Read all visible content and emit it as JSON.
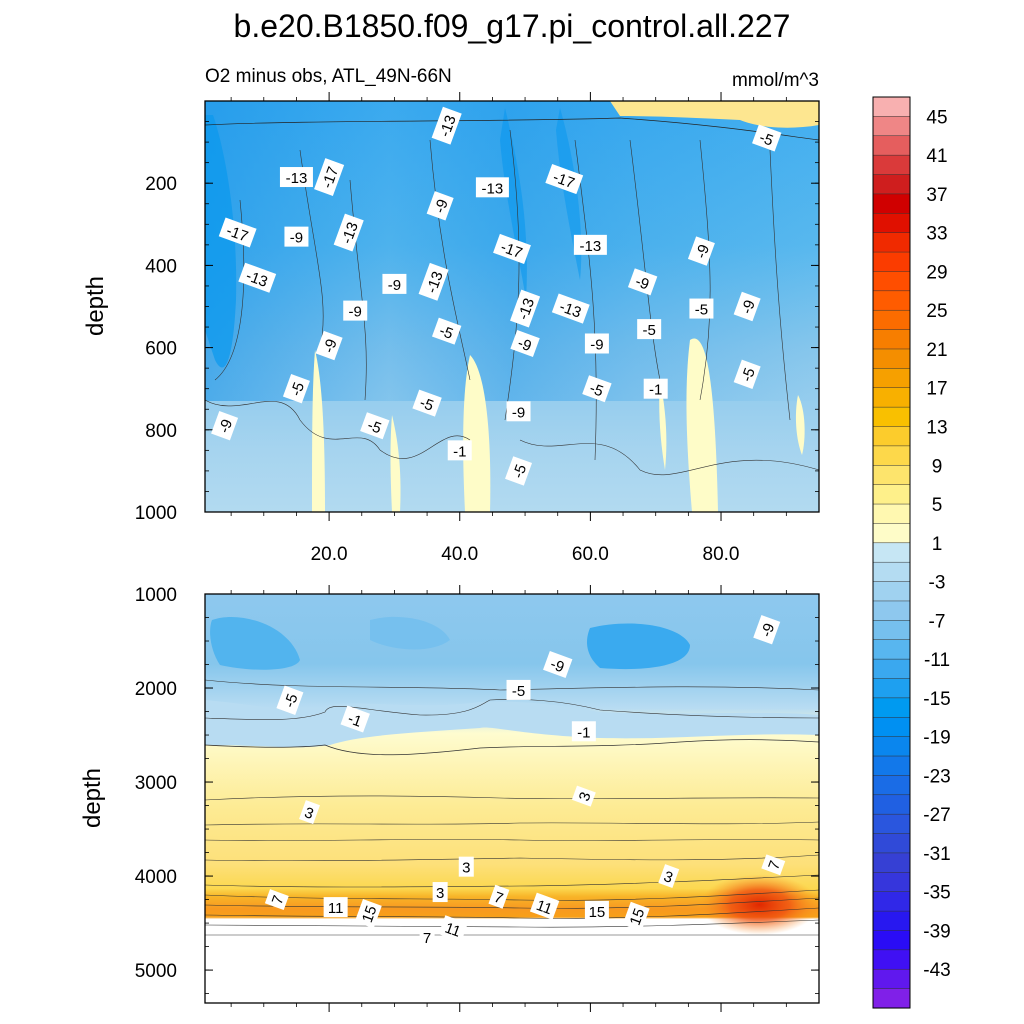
{
  "chart_data": {
    "type": "heatmap",
    "title": "b.e20.B1850.f09_g17.pi_control.all.227",
    "subtitle": "O2 minus obs, ATL_49N-66N",
    "units": "mmol/m^3",
    "xlim": [
      1,
      95
    ],
    "x_ticks": [
      "20.0",
      "40.0",
      "60.0",
      "80.0"
    ],
    "x_tick_values": [
      20,
      40,
      60,
      80
    ],
    "panels": [
      {
        "name": "upper",
        "ylabel": "depth",
        "ylim": [
          1000,
          0
        ],
        "y_ticks": [
          "200",
          "400",
          "600",
          "800",
          "1000"
        ],
        "y_tick_values": [
          200,
          400,
          600,
          800,
          1000
        ],
        "contour_labels": [
          {
            "x": 38,
            "depth": 60,
            "label": "-13"
          },
          {
            "x": 87,
            "depth": 90,
            "label": "-5"
          },
          {
            "x": 15,
            "depth": 185,
            "label": "-13"
          },
          {
            "x": 20,
            "depth": 185,
            "label": "-17"
          },
          {
            "x": 56,
            "depth": 190,
            "label": "-17"
          },
          {
            "x": 45,
            "depth": 210,
            "label": "-13"
          },
          {
            "x": 37,
            "depth": 255,
            "label": "-9"
          },
          {
            "x": 6,
            "depth": 320,
            "label": "-17"
          },
          {
            "x": 15,
            "depth": 330,
            "label": "-9"
          },
          {
            "x": 23,
            "depth": 320,
            "label": "-13"
          },
          {
            "x": 48,
            "depth": 360,
            "label": "-17"
          },
          {
            "x": 60,
            "depth": 350,
            "label": "-13"
          },
          {
            "x": 77,
            "depth": 365,
            "label": "-9"
          },
          {
            "x": 9,
            "depth": 430,
            "label": "-13"
          },
          {
            "x": 30,
            "depth": 445,
            "label": "-9"
          },
          {
            "x": 36,
            "depth": 440,
            "label": "-13"
          },
          {
            "x": 68,
            "depth": 440,
            "label": "-9"
          },
          {
            "x": 24,
            "depth": 510,
            "label": "-9"
          },
          {
            "x": 50,
            "depth": 505,
            "label": "-13"
          },
          {
            "x": 57,
            "depth": 505,
            "label": "-13"
          },
          {
            "x": 77,
            "depth": 505,
            "label": "-5"
          },
          {
            "x": 84,
            "depth": 500,
            "label": "-9"
          },
          {
            "x": 38,
            "depth": 560,
            "label": "-5"
          },
          {
            "x": 69,
            "depth": 555,
            "label": "-5"
          },
          {
            "x": 20,
            "depth": 595,
            "label": "-9"
          },
          {
            "x": 50,
            "depth": 590,
            "label": "-9"
          },
          {
            "x": 61,
            "depth": 590,
            "label": "-9"
          },
          {
            "x": 15,
            "depth": 700,
            "label": "-5"
          },
          {
            "x": 61,
            "depth": 700,
            "label": "-5"
          },
          {
            "x": 70,
            "depth": 700,
            "label": "-1"
          },
          {
            "x": 84,
            "depth": 665,
            "label": "-5"
          },
          {
            "x": 35,
            "depth": 735,
            "label": "-5"
          },
          {
            "x": 49,
            "depth": 755,
            "label": "-9"
          },
          {
            "x": 4,
            "depth": 790,
            "label": "-9"
          },
          {
            "x": 27,
            "depth": 790,
            "label": "-5"
          },
          {
            "x": 40,
            "depth": 850,
            "label": "-1"
          },
          {
            "x": 49,
            "depth": 900,
            "label": "-5"
          }
        ]
      },
      {
        "name": "lower",
        "ylabel": "depth",
        "ylim": [
          5350,
          1000
        ],
        "y_ticks": [
          "1000",
          "2000",
          "3000",
          "4000",
          "5000"
        ],
        "y_tick_values": [
          1000,
          2000,
          3000,
          4000,
          5000
        ],
        "contour_labels": [
          {
            "x": 87,
            "depth": 1380,
            "label": "-9"
          },
          {
            "x": 55,
            "depth": 1750,
            "label": "-9"
          },
          {
            "x": 49,
            "depth": 2020,
            "label": "-5"
          },
          {
            "x": 14,
            "depth": 2130,
            "label": "-5"
          },
          {
            "x": 24,
            "depth": 2330,
            "label": "-1"
          },
          {
            "x": 59,
            "depth": 2460,
            "label": "-1"
          },
          {
            "x": 59,
            "depth": 3150,
            "label": "3"
          },
          {
            "x": 17,
            "depth": 3320,
            "label": "3"
          },
          {
            "x": 41,
            "depth": 3900,
            "label": "3"
          },
          {
            "x": 88,
            "depth": 3880,
            "label": "7"
          },
          {
            "x": 72,
            "depth": 4000,
            "label": "3"
          },
          {
            "x": 37,
            "depth": 4170,
            "label": "3"
          },
          {
            "x": 12,
            "depth": 4250,
            "label": "7"
          },
          {
            "x": 46,
            "depth": 4220,
            "label": "7"
          },
          {
            "x": 21,
            "depth": 4330,
            "label": "11"
          },
          {
            "x": 26,
            "depth": 4400,
            "label": "15"
          },
          {
            "x": 53,
            "depth": 4320,
            "label": "11"
          },
          {
            "x": 61,
            "depth": 4370,
            "label": "15"
          },
          {
            "x": 67,
            "depth": 4430,
            "label": "15"
          },
          {
            "x": 39,
            "depth": 4560,
            "label": "11"
          },
          {
            "x": 35,
            "depth": 4650,
            "label": "7"
          }
        ]
      }
    ],
    "colorbar": {
      "labels": [
        "45",
        "41",
        "37",
        "33",
        "29",
        "25",
        "21",
        "17",
        "13",
        "9",
        "5",
        "1",
        "-3",
        "-7",
        "-11",
        "-15",
        "-19",
        "-23",
        "-27",
        "-31",
        "-35",
        "-39",
        "-43"
      ],
      "colors": [
        "#f8b0b0",
        "#ef8686",
        "#e55e5e",
        "#da3a3a",
        "#cf1e1e",
        "#d00000",
        "#e01000",
        "#f02a00",
        "#fb3c00",
        "#ff4e00",
        "#ff5c00",
        "#fb6c00",
        "#f77e00",
        "#f48e00",
        "#f6a000",
        "#f8b000",
        "#f9c000",
        "#fccc2c",
        "#fdd84a",
        "#fde46c",
        "#fef08a",
        "#fff8b0",
        "#fefcc8",
        "#c6e6f4",
        "#b4dcf2",
        "#a0d2f0",
        "#8ec8ee",
        "#76c0ee",
        "#58b6ef",
        "#3aa8ef",
        "#1ea0f0",
        "#009af0",
        "#0090f2",
        "#0a86ee",
        "#1278ea",
        "#1a6ce6",
        "#2060e2",
        "#2a56de",
        "#304ad8",
        "#3640d4",
        "#3636dc",
        "#3028e8",
        "#2818f0",
        "#2a0cf6",
        "#4010f4",
        "#6018ee",
        "#8020e8"
      ]
    }
  }
}
